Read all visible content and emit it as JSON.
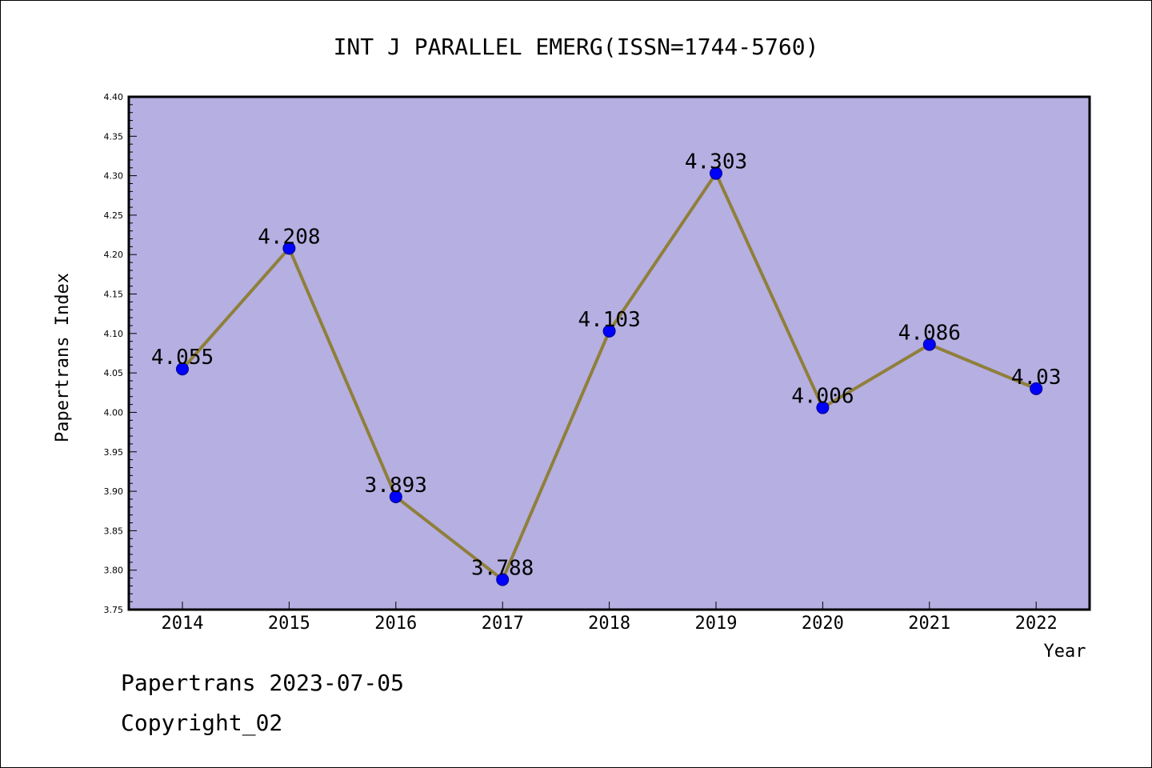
{
  "chart_data": {
    "type": "line",
    "title": "INT J PARALLEL EMERG(ISSN=1744-5760)",
    "xlabel": "Year",
    "ylabel": "Papertrans Index",
    "categories": [
      "2014",
      "2015",
      "2016",
      "2017",
      "2018",
      "2019",
      "2020",
      "2021",
      "2022"
    ],
    "series": [
      {
        "values": [
          4.055,
          4.208,
          3.893,
          3.788,
          4.103,
          4.303,
          4.006,
          4.086,
          4.03
        ],
        "labels": [
          "4.055",
          "4.208",
          "3.893",
          "3.788",
          "4.103",
          "4.303",
          "4.006",
          "4.086",
          "4.03"
        ]
      }
    ],
    "ylim": [
      3.75,
      4.4
    ],
    "y_ticks": [
      "3.75",
      "3.80",
      "3.85",
      "3.90",
      "3.95",
      "4.00",
      "4.05",
      "4.10",
      "4.15",
      "4.20",
      "4.25",
      "4.30",
      "4.35",
      "4.40"
    ],
    "grid": false,
    "colors": {
      "plot_background": "#b5afe2",
      "line": "#8f7f3a",
      "marker": "#0000ff",
      "marker_edge": "#000080",
      "axes": "#000000"
    }
  },
  "footer": {
    "date_text": "Papertrans 2023-07-05",
    "copyright_text": "Copyright_02"
  }
}
